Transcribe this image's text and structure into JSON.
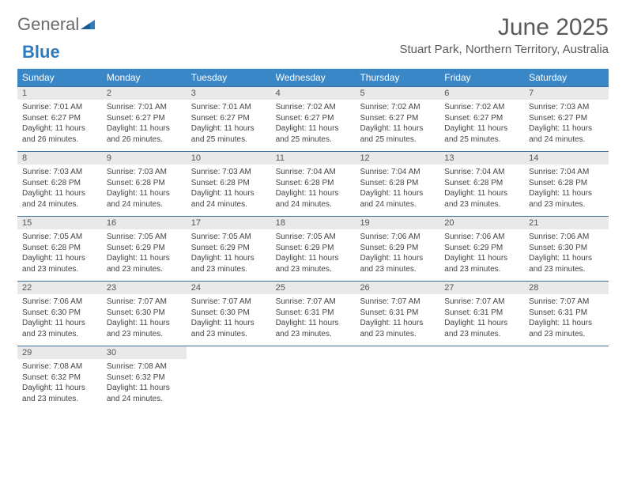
{
  "logo": {
    "text1": "General",
    "text2": "Blue"
  },
  "title": "June 2025",
  "location": "Stuart Park, Northern Territory, Australia",
  "colors": {
    "header_bg": "#3a87c8",
    "header_text": "#ffffff",
    "daynum_bg": "#e9e9e9",
    "border_top": "#3a6fa0",
    "text": "#444444",
    "title_text": "#5a5a5a",
    "logo_blue": "#2f7bbf"
  },
  "weekdays": [
    "Sunday",
    "Monday",
    "Tuesday",
    "Wednesday",
    "Thursday",
    "Friday",
    "Saturday"
  ],
  "weeks": [
    [
      {
        "n": "1",
        "sr": "7:01 AM",
        "ss": "6:27 PM",
        "dl": "11 hours and 26 minutes."
      },
      {
        "n": "2",
        "sr": "7:01 AM",
        "ss": "6:27 PM",
        "dl": "11 hours and 26 minutes."
      },
      {
        "n": "3",
        "sr": "7:01 AM",
        "ss": "6:27 PM",
        "dl": "11 hours and 25 minutes."
      },
      {
        "n": "4",
        "sr": "7:02 AM",
        "ss": "6:27 PM",
        "dl": "11 hours and 25 minutes."
      },
      {
        "n": "5",
        "sr": "7:02 AM",
        "ss": "6:27 PM",
        "dl": "11 hours and 25 minutes."
      },
      {
        "n": "6",
        "sr": "7:02 AM",
        "ss": "6:27 PM",
        "dl": "11 hours and 25 minutes."
      },
      {
        "n": "7",
        "sr": "7:03 AM",
        "ss": "6:27 PM",
        "dl": "11 hours and 24 minutes."
      }
    ],
    [
      {
        "n": "8",
        "sr": "7:03 AM",
        "ss": "6:28 PM",
        "dl": "11 hours and 24 minutes."
      },
      {
        "n": "9",
        "sr": "7:03 AM",
        "ss": "6:28 PM",
        "dl": "11 hours and 24 minutes."
      },
      {
        "n": "10",
        "sr": "7:03 AM",
        "ss": "6:28 PM",
        "dl": "11 hours and 24 minutes."
      },
      {
        "n": "11",
        "sr": "7:04 AM",
        "ss": "6:28 PM",
        "dl": "11 hours and 24 minutes."
      },
      {
        "n": "12",
        "sr": "7:04 AM",
        "ss": "6:28 PM",
        "dl": "11 hours and 24 minutes."
      },
      {
        "n": "13",
        "sr": "7:04 AM",
        "ss": "6:28 PM",
        "dl": "11 hours and 23 minutes."
      },
      {
        "n": "14",
        "sr": "7:04 AM",
        "ss": "6:28 PM",
        "dl": "11 hours and 23 minutes."
      }
    ],
    [
      {
        "n": "15",
        "sr": "7:05 AM",
        "ss": "6:28 PM",
        "dl": "11 hours and 23 minutes."
      },
      {
        "n": "16",
        "sr": "7:05 AM",
        "ss": "6:29 PM",
        "dl": "11 hours and 23 minutes."
      },
      {
        "n": "17",
        "sr": "7:05 AM",
        "ss": "6:29 PM",
        "dl": "11 hours and 23 minutes."
      },
      {
        "n": "18",
        "sr": "7:05 AM",
        "ss": "6:29 PM",
        "dl": "11 hours and 23 minutes."
      },
      {
        "n": "19",
        "sr": "7:06 AM",
        "ss": "6:29 PM",
        "dl": "11 hours and 23 minutes."
      },
      {
        "n": "20",
        "sr": "7:06 AM",
        "ss": "6:29 PM",
        "dl": "11 hours and 23 minutes."
      },
      {
        "n": "21",
        "sr": "7:06 AM",
        "ss": "6:30 PM",
        "dl": "11 hours and 23 minutes."
      }
    ],
    [
      {
        "n": "22",
        "sr": "7:06 AM",
        "ss": "6:30 PM",
        "dl": "11 hours and 23 minutes."
      },
      {
        "n": "23",
        "sr": "7:07 AM",
        "ss": "6:30 PM",
        "dl": "11 hours and 23 minutes."
      },
      {
        "n": "24",
        "sr": "7:07 AM",
        "ss": "6:30 PM",
        "dl": "11 hours and 23 minutes."
      },
      {
        "n": "25",
        "sr": "7:07 AM",
        "ss": "6:31 PM",
        "dl": "11 hours and 23 minutes."
      },
      {
        "n": "26",
        "sr": "7:07 AM",
        "ss": "6:31 PM",
        "dl": "11 hours and 23 minutes."
      },
      {
        "n": "27",
        "sr": "7:07 AM",
        "ss": "6:31 PM",
        "dl": "11 hours and 23 minutes."
      },
      {
        "n": "28",
        "sr": "7:07 AM",
        "ss": "6:31 PM",
        "dl": "11 hours and 23 minutes."
      }
    ],
    [
      {
        "n": "29",
        "sr": "7:08 AM",
        "ss": "6:32 PM",
        "dl": "11 hours and 23 minutes."
      },
      {
        "n": "30",
        "sr": "7:08 AM",
        "ss": "6:32 PM",
        "dl": "11 hours and 24 minutes."
      },
      null,
      null,
      null,
      null,
      null
    ]
  ],
  "labels": {
    "sunrise": "Sunrise: ",
    "sunset": "Sunset: ",
    "daylight": "Daylight: "
  }
}
